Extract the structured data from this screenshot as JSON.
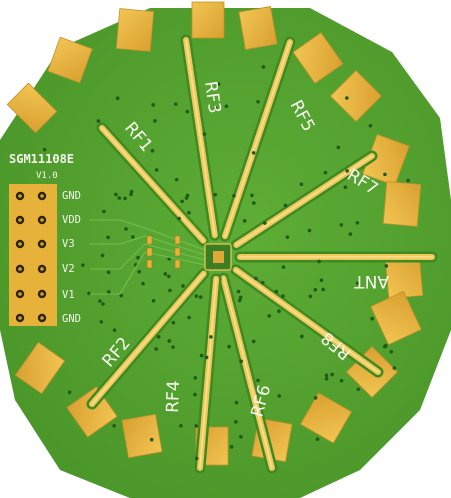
{
  "board": {
    "name": "SGM11108E",
    "version": "V1.0",
    "colors": {
      "background": "#ffffff",
      "soldermask": "#4f9e2c",
      "soldermask_light": "#5cab34",
      "pad_gold": "#e8b43c",
      "trace": "#f0c85a",
      "silkscreen": "#f4f6ec",
      "via": "#1f5a16"
    },
    "header_pins": [
      "GND",
      "VDD",
      "V3",
      "V2",
      "V1",
      "GND"
    ],
    "ports": [
      {
        "label": "RF1"
      },
      {
        "label": "RF3"
      },
      {
        "label": "RF5"
      },
      {
        "label": "RF7"
      },
      {
        "label": "ANT"
      },
      {
        "label": "RF8"
      },
      {
        "label": "RF6"
      },
      {
        "label": "RF4"
      },
      {
        "label": "RF2"
      }
    ]
  }
}
